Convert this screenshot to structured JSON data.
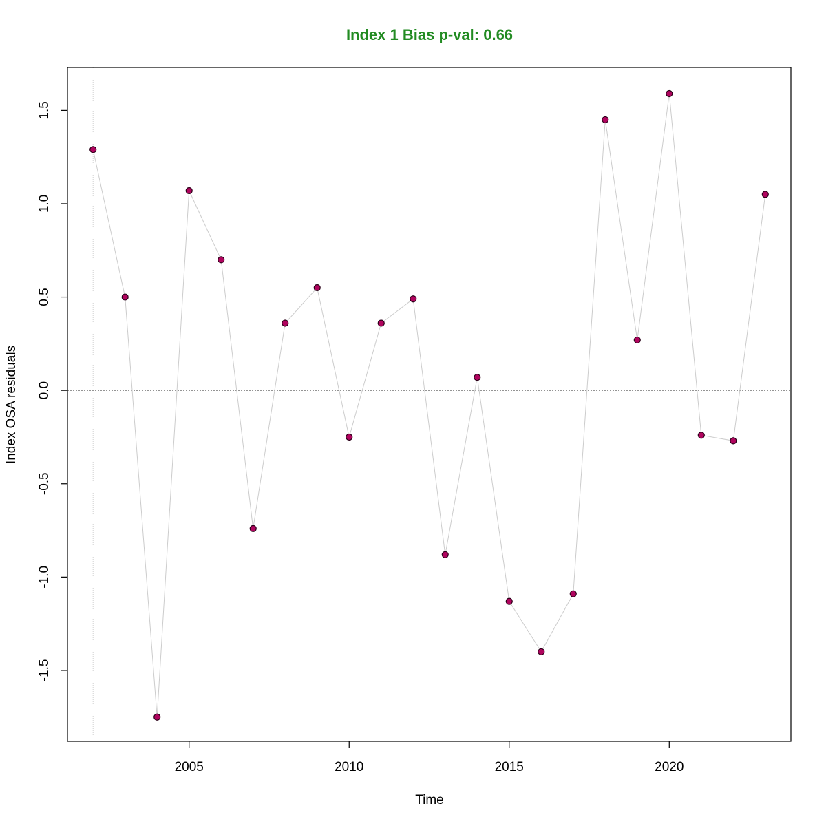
{
  "chart_data": {
    "type": "line",
    "title": "Index 1 Bias p-val: 0.66",
    "xlabel": "Time",
    "ylabel": "Index OSA residuals",
    "xlim": [
      2001.2,
      2023.8
    ],
    "ylim": [
      -1.88,
      1.73
    ],
    "xticks": [
      2005,
      2010,
      2015,
      2020
    ],
    "yticks": [
      -1.5,
      -1.0,
      -0.5,
      0.0,
      0.5,
      1.0,
      1.5
    ],
    "ytick_labels": [
      "-1.5",
      "-1.0",
      "-0.5",
      "0.0",
      "0.5",
      "1.0",
      "1.5"
    ],
    "reference_lines": {
      "hline_y": 0,
      "vline_x": 2002
    },
    "series": [
      {
        "x": [
          2002,
          2003,
          2004,
          2005,
          2006,
          2007,
          2008,
          2009,
          2010,
          2011,
          2012,
          2013,
          2014,
          2015,
          2016,
          2017,
          2018,
          2019,
          2020,
          2021,
          2022,
          2023
        ],
        "y": [
          1.29,
          0.5,
          -1.75,
          1.07,
          0.7,
          -0.74,
          0.36,
          0.55,
          -0.25,
          0.36,
          0.49,
          -0.88,
          0.07,
          -1.13,
          -1.4,
          -1.09,
          1.45,
          0.27,
          1.59,
          -0.24,
          -0.27,
          1.05
        ]
      }
    ],
    "colors": {
      "title": "#228b22",
      "point_fill": "#b0045e",
      "point_stroke": "#2a0018",
      "line": "#cccccc",
      "zero_line": "#707070",
      "vline": "#cfcfcf"
    }
  }
}
